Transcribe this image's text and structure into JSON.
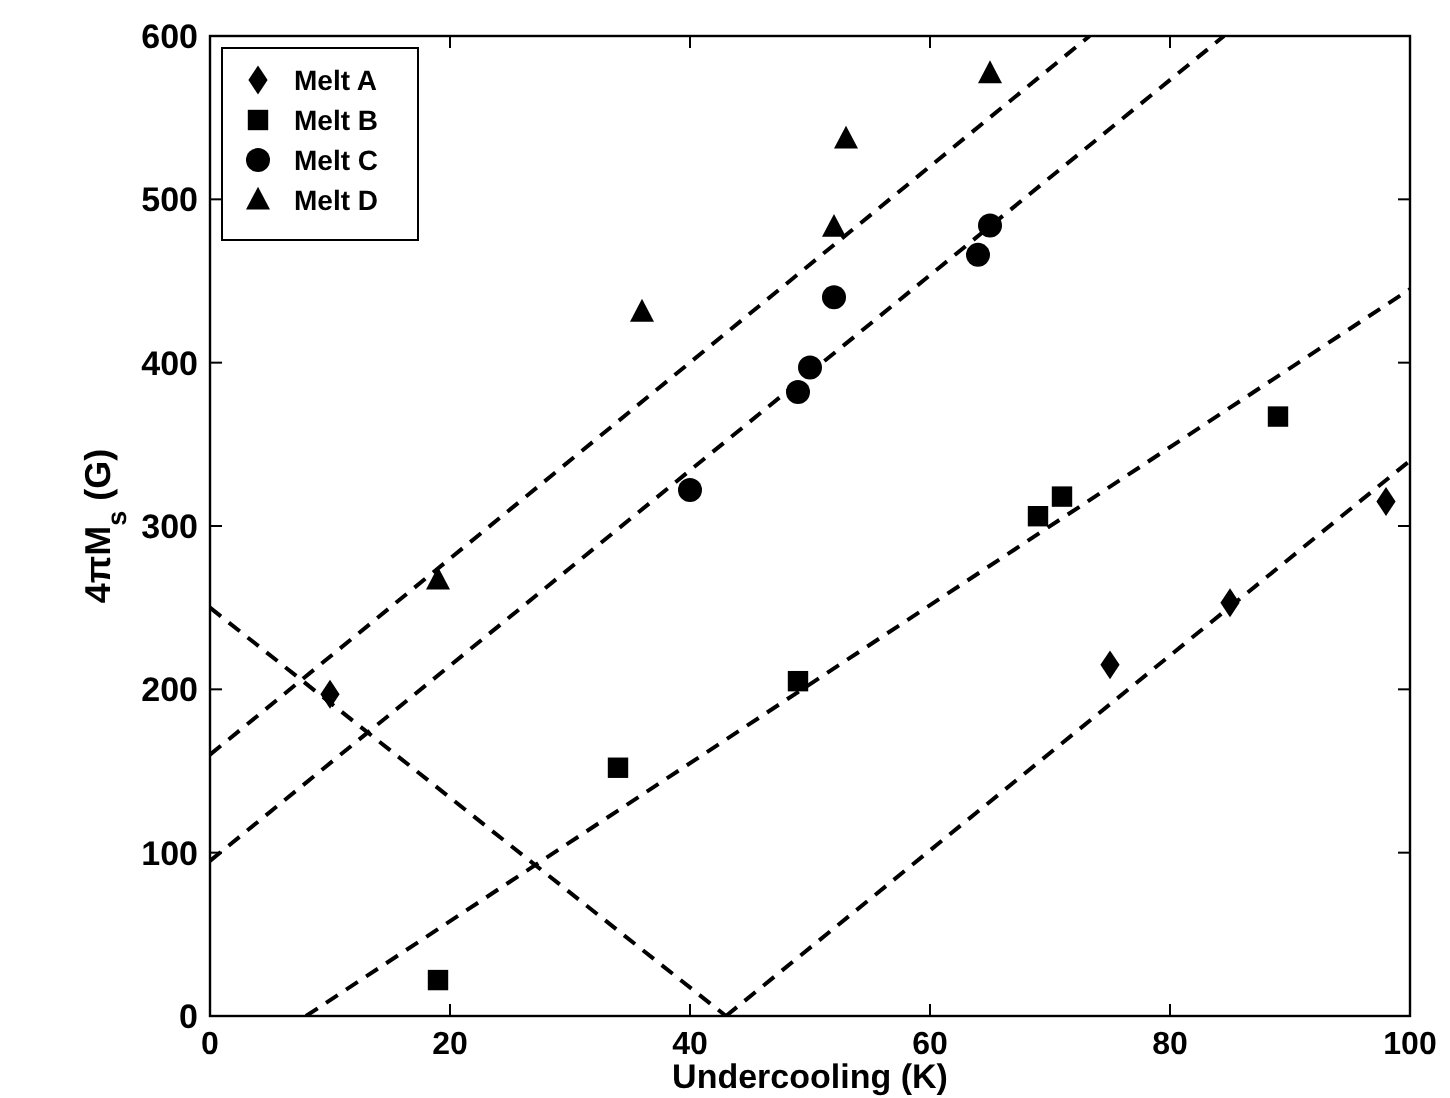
{
  "chart_data": {
    "type": "scatter",
    "xlabel": "Undercooling (K)",
    "ylabel": "4πM$_{s}$ (G)",
    "xlim": [
      0,
      100
    ],
    "ylim": [
      0,
      600
    ],
    "xticks": [
      0,
      20,
      40,
      60,
      80,
      100
    ],
    "yticks": [
      0,
      100,
      200,
      300,
      400,
      500,
      600
    ],
    "grid": false,
    "legend": "top left",
    "series": [
      {
        "name": "Melt A",
        "marker": "diamond",
        "color": "#000000",
        "x": [
          10,
          75,
          85,
          98
        ],
        "values": [
          197,
          215,
          253,
          315
        ]
      },
      {
        "name": "Melt B",
        "marker": "square",
        "color": "#000000",
        "x": [
          19,
          34,
          49,
          69,
          71,
          89
        ],
        "values": [
          22,
          152,
          205,
          306,
          318,
          367
        ]
      },
      {
        "name": "Melt C",
        "marker": "circle",
        "color": "#000000",
        "x": [
          40,
          49,
          50,
          52,
          64,
          65
        ],
        "values": [
          322,
          382,
          397,
          440,
          466,
          484
        ]
      },
      {
        "name": "Melt D",
        "marker": "triangle",
        "color": "#000000",
        "x": [
          19,
          36,
          52,
          53,
          65
        ],
        "values": [
          267,
          431,
          483,
          537,
          577
        ]
      },
      {
        "type": "line",
        "marker": "none",
        "line_style": "dashed",
        "color": "#000000",
        "x": [
          0,
          43
        ],
        "values": [
          250,
          0
        ]
      },
      {
        "type": "line",
        "marker": "none",
        "line_style": "dashed",
        "color": "#000000",
        "x": [
          43,
          100
        ],
        "values": [
          0,
          340
        ]
      },
      {
        "type": "line",
        "marker": "none",
        "line_style": "dashed",
        "color": "#000000",
        "x": [
          8,
          100
        ],
        "values": [
          0,
          445
        ]
      },
      {
        "type": "line",
        "marker": "none",
        "line_style": "dashed",
        "color": "#000000",
        "x": [
          0,
          84.5
        ],
        "values": [
          95,
          600
        ]
      },
      {
        "type": "line",
        "marker": "none",
        "line_style": "dashed",
        "color": "#000000",
        "x": [
          0,
          73.3
        ],
        "values": [
          160,
          600
        ]
      }
    ]
  }
}
